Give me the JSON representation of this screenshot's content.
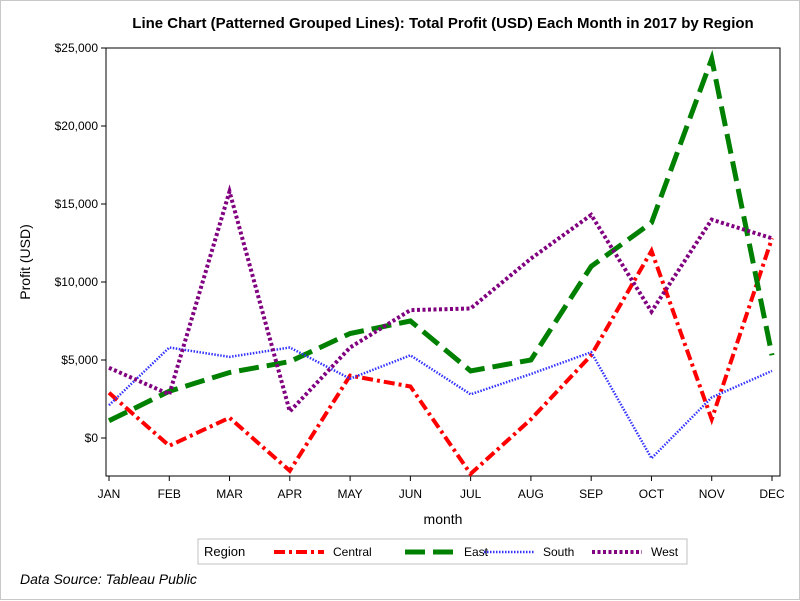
{
  "chart_data": {
    "type": "line",
    "title": "Line Chart (Patterned Grouped Lines): Total Profit (USD) Each Month in 2017 by Region",
    "xlabel": "month",
    "ylabel": "Profit (USD)",
    "categories": [
      "JAN",
      "FEB",
      "MAR",
      "APR",
      "MAY",
      "JUN",
      "JUL",
      "AUG",
      "SEP",
      "OCT",
      "NOV",
      "DEC"
    ],
    "ylim": [
      -2300,
      25500
    ],
    "yticks": [
      0,
      5000,
      10000,
      15000,
      20000,
      25000
    ],
    "ytick_labels": [
      "$0",
      "$5,000",
      "$10,000",
      "$15,000",
      "$20,000",
      "$25,000"
    ],
    "grid": false,
    "legend_title": "Region",
    "legend_position": "bottom",
    "series": [
      {
        "name": "Central",
        "color": "#ff0000",
        "style": "dash-dot",
        "values": [
          2900,
          -500,
          1300,
          -2100,
          4000,
          3300,
          -2300,
          1200,
          5300,
          12000,
          1200,
          12800
        ]
      },
      {
        "name": "East",
        "color": "#008000",
        "style": "long-dash",
        "values": [
          1100,
          3000,
          4200,
          4900,
          6700,
          7500,
          4300,
          5000,
          11000,
          13800,
          24300,
          5300
        ]
      },
      {
        "name": "South",
        "color": "#3333ff",
        "style": "dotted",
        "values": [
          2100,
          5800,
          5200,
          5800,
          3800,
          5300,
          2800,
          4100,
          5500,
          -1300,
          2600,
          4300
        ]
      },
      {
        "name": "West",
        "color": "#800080",
        "style": "dotted-thick",
        "values": [
          4500,
          2800,
          15800,
          1700,
          5800,
          8200,
          8300,
          11500,
          14300,
          8100,
          14000,
          12800
        ]
      }
    ],
    "footnote": "Data Source: Tableau Public"
  }
}
